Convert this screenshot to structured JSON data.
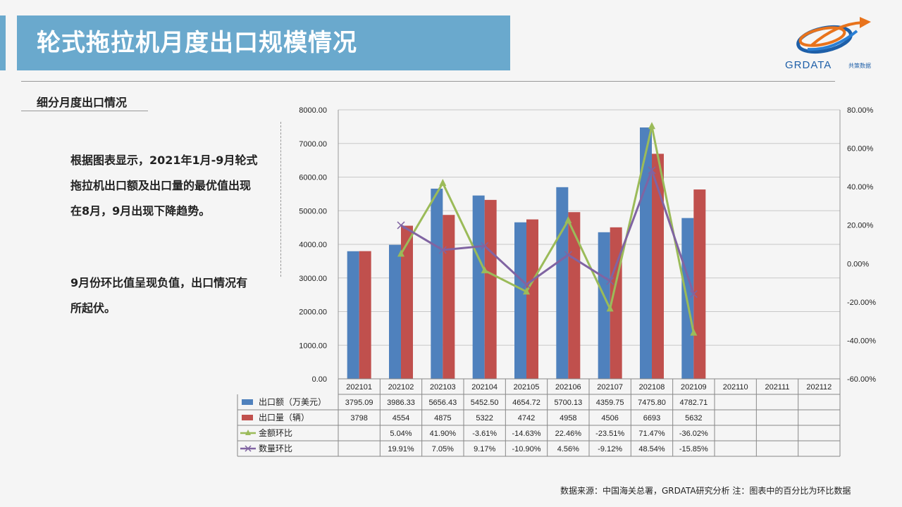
{
  "header": {
    "title": "轮式拖拉机月度出口规模情况"
  },
  "logo": {
    "text": "GRDATA",
    "sub": "共策数据"
  },
  "section": {
    "subtitle": "细分月度出口情况"
  },
  "notes": {
    "note1": "根据图表显示，2021年1月-9月轮式拖拉机出口额及出口量的最优值出现在8月，9月出现下降趋势。",
    "note2": "9月份环比值呈现负值，出口情况有所起伏。"
  },
  "footer": {
    "source": "数据来源：中国海关总署，GRDATA研究分析  注：图表中的百分比为环比数据"
  },
  "colors": {
    "amount": "#4f81bd",
    "quantity": "#c0504d",
    "amount_mom": "#9bbb59",
    "quantity_mom": "#8064a2"
  },
  "chart_data": {
    "type": "bar",
    "categories": [
      "202101",
      "202102",
      "202103",
      "202104",
      "202105",
      "202106",
      "202107",
      "202108",
      "202109",
      "202110",
      "202111",
      "202112"
    ],
    "ylim": [
      0,
      8000
    ],
    "y_ticks": [
      "0.00",
      "1000.00",
      "2000.00",
      "3000.00",
      "4000.00",
      "5000.00",
      "6000.00",
      "7000.00",
      "8000.00"
    ],
    "y2lim": [
      -60,
      80
    ],
    "y2_ticks": [
      "-60.00%",
      "-40.00%",
      "-20.00%",
      "0.00%",
      "20.00%",
      "40.00%",
      "60.00%",
      "80.00%"
    ],
    "grid": true,
    "legend": "data-table",
    "series": [
      {
        "name": "出口额（万美元）",
        "type": "bar",
        "axis": "left",
        "values": [
          3795.09,
          3986.33,
          5656.43,
          5452.5,
          4654.72,
          5700.13,
          4359.75,
          7475.8,
          4782.71,
          null,
          null,
          null
        ],
        "labels": [
          "3795.09",
          "3986.33",
          "5656.43",
          "5452.50",
          "4654.72",
          "5700.13",
          "4359.75",
          "7475.80",
          "4782.71",
          "",
          "",
          ""
        ]
      },
      {
        "name": "出口量（辆）",
        "type": "bar",
        "axis": "left",
        "values": [
          3798,
          4554,
          4875,
          5322,
          4742,
          4958,
          4506,
          6693,
          5632,
          null,
          null,
          null
        ],
        "labels": [
          "3798",
          "4554",
          "4875",
          "5322",
          "4742",
          "4958",
          "4506",
          "6693",
          "5632",
          "",
          "",
          ""
        ]
      },
      {
        "name": "金额环比",
        "type": "line",
        "axis": "right",
        "marker": "triangle",
        "values": [
          null,
          5.04,
          41.9,
          -3.61,
          -14.63,
          22.46,
          -23.51,
          71.47,
          -36.02,
          null,
          null,
          null
        ],
        "labels": [
          "",
          "5.04%",
          "41.90%",
          "-3.61%",
          "-14.63%",
          "22.46%",
          "-23.51%",
          "71.47%",
          "-36.02%",
          "",
          "",
          ""
        ]
      },
      {
        "name": "数量环比",
        "type": "line",
        "axis": "right",
        "marker": "x",
        "values": [
          null,
          19.91,
          7.05,
          9.17,
          -10.9,
          4.56,
          -9.12,
          48.54,
          -15.85,
          null,
          null,
          null
        ],
        "labels": [
          "",
          "19.91%",
          "7.05%",
          "9.17%",
          "-10.90%",
          "4.56%",
          "-9.12%",
          "48.54%",
          "-15.85%",
          "",
          "",
          ""
        ]
      }
    ]
  }
}
